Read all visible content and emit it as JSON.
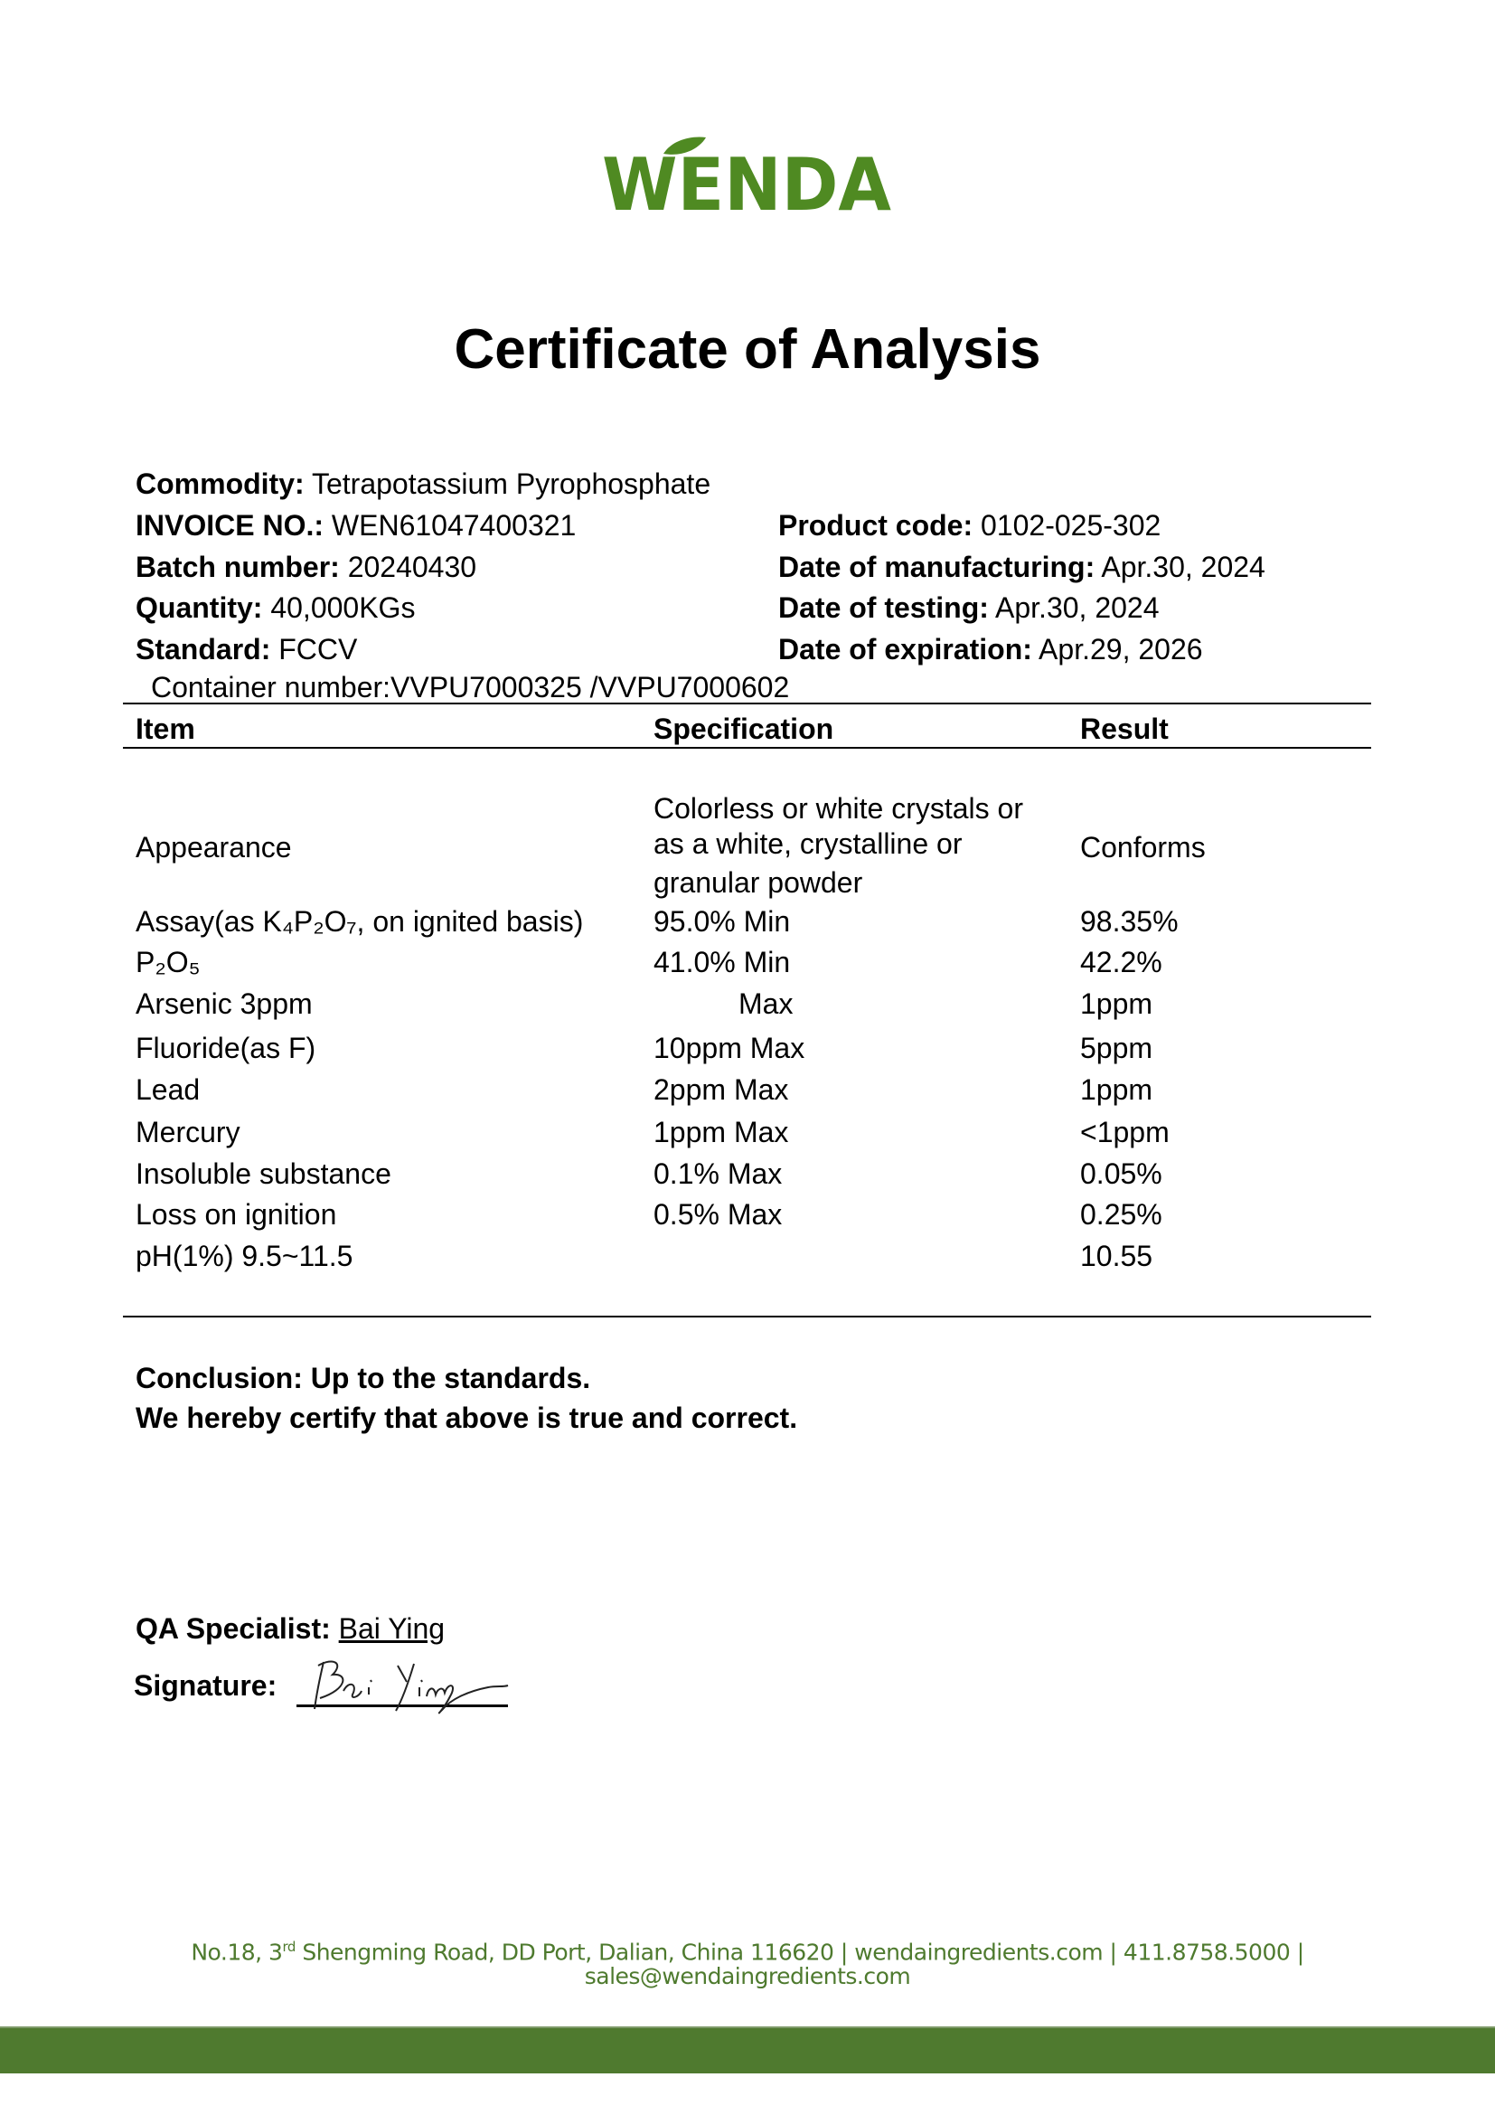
{
  "logo": {
    "text": "WENDA",
    "color": "#4f8a22"
  },
  "title": "Certificate of Analysis",
  "info": {
    "commodity": {
      "label": "Commodity:",
      "value": "Tetrapotassium Pyrophosphate"
    },
    "invoice": {
      "label": "INVOICE NO.:",
      "value": "WEN61047400321"
    },
    "batch": {
      "label": "Batch number:",
      "value": "20240430"
    },
    "quantity": {
      "label": "Quantity:",
      "value": "40,000KGs"
    },
    "standard": {
      "label": "Standard:",
      "value": "FCCV"
    },
    "product_code": {
      "label": "Product code:",
      "value": "0102-025-302"
    },
    "manufacturing": {
      "label": "Date of manufacturing:",
      "value": "Apr.30, 2024"
    },
    "testing": {
      "label": "Date of testing:",
      "value": "Apr.30, 2024"
    },
    "expiration": {
      "label": "Date of expiration:",
      "value": "Apr.29, 2026"
    },
    "container": "Container number:VVPU7000325 /VVPU7000602"
  },
  "table": {
    "headers": [
      "Item",
      "Specification",
      "Result"
    ],
    "appearance": {
      "item": "Appearance",
      "spec_lines": [
        "Colorless or white crystals or",
        "as a white, crystalline or",
        "granular powder"
      ],
      "result": "Conforms"
    },
    "rows": [
      {
        "item": "Assay(as K₄P₂O₇, on ignited basis)",
        "spec": "95.0% Min",
        "result": "98.35%"
      },
      {
        "item": "P₂O₅",
        "spec": "41.0% Min",
        "result": "42.2%"
      },
      {
        "item": "Arsenic 3ppm",
        "spec": "Max",
        "result": "1ppm"
      },
      {
        "item": "Fluoride(as F)",
        "spec": "10ppm Max",
        "result": "5ppm"
      },
      {
        "item": "Lead",
        "spec": "2ppm Max",
        "result": "1ppm"
      },
      {
        "item": "Mercury",
        "spec": "1ppm Max",
        "result": "<1ppm"
      },
      {
        "item": "Insoluble substance",
        "spec": "0.1% Max",
        "result": "0.05%"
      },
      {
        "item": "Loss on ignition",
        "spec": "0.5% Max",
        "result": "0.25%"
      },
      {
        "item": "pH(1%) 9.5~11.5",
        "spec": "",
        "result": "10.55"
      }
    ]
  },
  "conclusion": {
    "line1": "Conclusion: Up to the standards.",
    "line2": "We hereby certify that above is true and correct."
  },
  "qa": {
    "label": "QA Specialist:",
    "name": "Bai Ying"
  },
  "signature": {
    "label": "Signature:",
    "handwritten": "Bai Ying"
  },
  "footer": {
    "line1_pre": "No.18, 3",
    "line1_sup": "rd",
    "line1_post": " Shengming Road, DD Port, Dalian, China 116620  |   wendaingredients.com   |   411.8758.5000  |",
    "line2": "sales@wendaingredients.com",
    "color": "#4e7a2e",
    "bar_color": "#4f7a2f"
  }
}
